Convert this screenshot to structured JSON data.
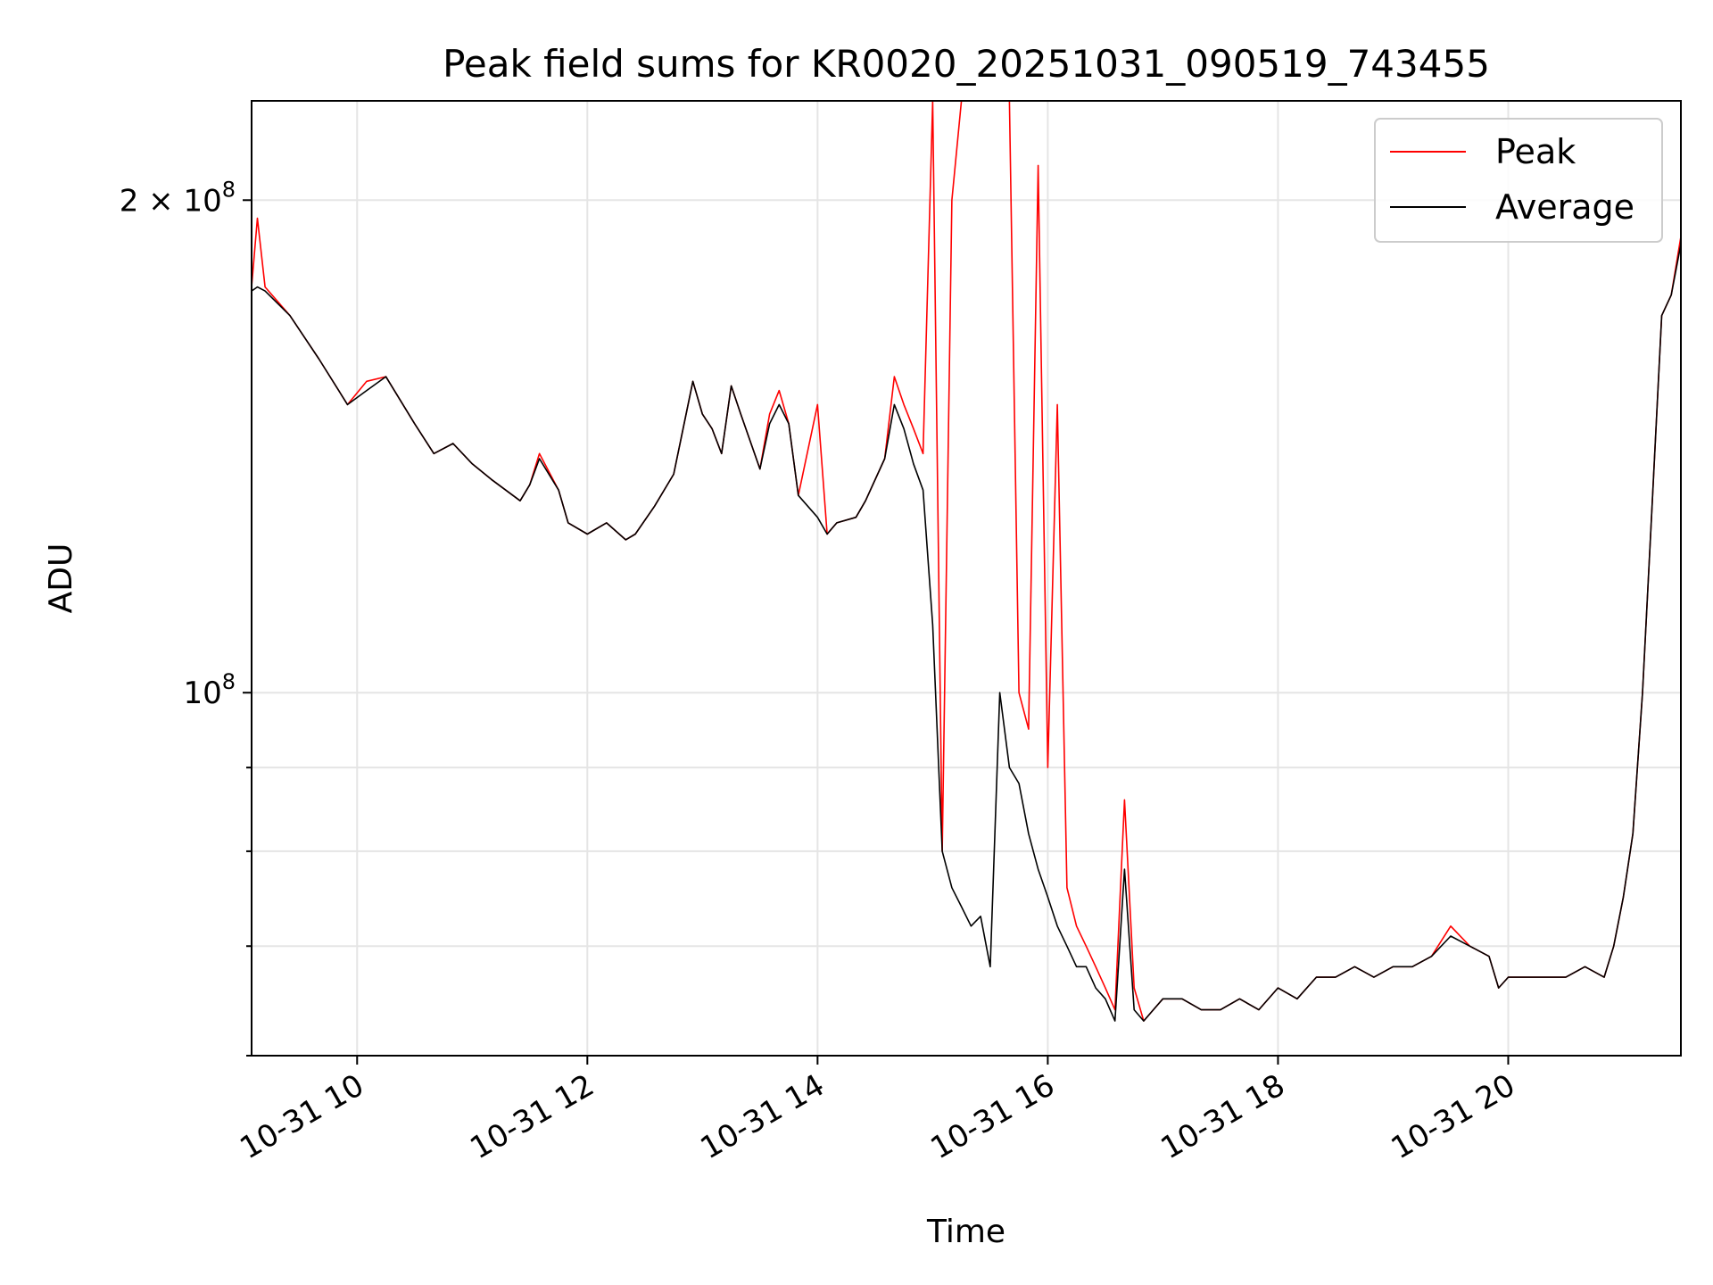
{
  "chart_data": {
    "type": "line",
    "title": "Peak field sums for KR0020_20251031_090519_743455",
    "xlabel": "Time",
    "ylabel": "ADU",
    "yscale": "log",
    "xlim": [
      "10-31 09:05",
      "10-31 21:30"
    ],
    "ylim": [
      60000000,
      230000000
    ],
    "grid": true,
    "legend_position": "upper-right",
    "x_ticks": [
      "10-31 10",
      "10-31 12",
      "10-31 14",
      "10-31 16",
      "10-31 18",
      "10-31 20"
    ],
    "y_ticks": [
      {
        "value": 100000000,
        "label_base": "10",
        "label_exp": "8"
      },
      {
        "value": 200000000,
        "label_base": "2 × 10",
        "label_exp": "8"
      }
    ],
    "y_minor_ticks": [
      60000000,
      70000000,
      80000000,
      90000000
    ],
    "colors": {
      "peak": "#ff0000",
      "average": "#000000"
    },
    "x": [
      "10-31 09:05",
      "10-31 09:08",
      "10-31 09:12",
      "10-31 09:25",
      "10-31 09:40",
      "10-31 09:55",
      "10-31 10:05",
      "10-31 10:15",
      "10-31 10:30",
      "10-31 10:40",
      "10-31 10:50",
      "10-31 11:00",
      "10-31 11:10",
      "10-31 11:25",
      "10-31 11:30",
      "10-31 11:35",
      "10-31 11:45",
      "10-31 11:50",
      "10-31 12:00",
      "10-31 12:10",
      "10-31 12:20",
      "10-31 12:25",
      "10-31 12:35",
      "10-31 12:45",
      "10-31 12:55",
      "10-31 13:00",
      "10-31 13:05",
      "10-31 13:10",
      "10-31 13:15",
      "10-31 13:20",
      "10-31 13:30",
      "10-31 13:35",
      "10-31 13:40",
      "10-31 13:45",
      "10-31 13:50",
      "10-31 14:00",
      "10-31 14:05",
      "10-31 14:10",
      "10-31 14:20",
      "10-31 14:25",
      "10-31 14:35",
      "10-31 14:40",
      "10-31 14:45",
      "10-31 14:50",
      "10-31 14:55",
      "10-31 15:00",
      "10-31 15:05",
      "10-31 15:10",
      "10-31 15:15",
      "10-31 15:20",
      "10-31 15:25",
      "10-31 15:30",
      "10-31 15:35",
      "10-31 15:40",
      "10-31 15:45",
      "10-31 15:50",
      "10-31 15:55",
      "10-31 16:00",
      "10-31 16:05",
      "10-31 16:10",
      "10-31 16:15",
      "10-31 16:20",
      "10-31 16:25",
      "10-31 16:30",
      "10-31 16:35",
      "10-31 16:40",
      "10-31 16:45",
      "10-31 16:50",
      "10-31 16:55",
      "10-31 17:00",
      "10-31 17:10",
      "10-31 17:20",
      "10-31 17:30",
      "10-31 17:40",
      "10-31 17:50",
      "10-31 18:00",
      "10-31 18:10",
      "10-31 18:20",
      "10-31 18:30",
      "10-31 18:40",
      "10-31 18:50",
      "10-31 19:00",
      "10-31 19:10",
      "10-31 19:20",
      "10-31 19:30",
      "10-31 19:40",
      "10-31 19:50",
      "10-31 19:55",
      "10-31 20:00",
      "10-31 20:10",
      "10-31 20:20",
      "10-31 20:30",
      "10-31 20:40",
      "10-31 20:50",
      "10-31 20:55",
      "10-31 21:00",
      "10-31 21:05",
      "10-31 21:10",
      "10-31 21:15",
      "10-31 21:20",
      "10-31 21:25",
      "10-31 21:30"
    ],
    "series": [
      {
        "name": "Peak",
        "values": [
          177000000,
          195000000,
          177000000,
          170000000,
          160000000,
          150000000,
          155000000,
          156000000,
          146000000,
          140000000,
          142000000,
          138000000,
          135000000,
          131000000,
          134000000,
          140000000,
          133000000,
          127000000,
          125000000,
          127000000,
          124000000,
          125000000,
          130000000,
          136000000,
          155000000,
          148000000,
          145000000,
          140000000,
          154000000,
          148000000,
          137000000,
          148000000,
          153000000,
          146000000,
          132000000,
          150000000,
          125000000,
          127000000,
          128000000,
          131000000,
          139000000,
          156000000,
          150000000,
          145000000,
          140000000,
          230000000,
          80000000,
          200000000,
          230000000,
          230000000,
          230000000,
          230000000,
          230000000,
          230000000,
          100000000,
          95000000,
          210000000,
          90000000,
          150000000,
          76000000,
          72000000,
          70000000,
          68000000,
          66000000,
          64000000,
          86000000,
          66000000,
          63000000,
          64000000,
          65000000,
          65000000,
          64000000,
          64000000,
          65000000,
          64000000,
          66000000,
          65000000,
          67000000,
          67000000,
          68000000,
          67000000,
          68000000,
          68000000,
          69000000,
          72000000,
          70000000,
          69000000,
          66000000,
          67000000,
          67000000,
          67000000,
          67000000,
          68000000,
          67000000,
          70000000,
          75000000,
          82000000,
          100000000,
          130000000,
          170000000,
          175000000,
          190000000
        ]
      },
      {
        "name": "Average",
        "values": [
          176000000,
          177000000,
          176000000,
          170000000,
          160000000,
          150000000,
          153000000,
          156000000,
          146000000,
          140000000,
          142000000,
          138000000,
          135000000,
          131000000,
          134000000,
          139000000,
          133000000,
          127000000,
          125000000,
          127000000,
          124000000,
          125000000,
          130000000,
          136000000,
          155000000,
          148000000,
          145000000,
          140000000,
          154000000,
          148000000,
          137000000,
          146000000,
          150000000,
          146000000,
          132000000,
          128000000,
          125000000,
          127000000,
          128000000,
          131000000,
          139000000,
          150000000,
          145000000,
          138000000,
          133000000,
          110000000,
          80000000,
          76000000,
          74000000,
          72000000,
          73000000,
          68000000,
          100000000,
          90000000,
          88000000,
          82000000,
          78000000,
          75000000,
          72000000,
          70000000,
          68000000,
          68000000,
          66000000,
          65000000,
          63000000,
          78000000,
          64000000,
          63000000,
          64000000,
          65000000,
          65000000,
          64000000,
          64000000,
          65000000,
          64000000,
          66000000,
          65000000,
          67000000,
          67000000,
          68000000,
          67000000,
          68000000,
          68000000,
          69000000,
          71000000,
          70000000,
          69000000,
          66000000,
          67000000,
          67000000,
          67000000,
          67000000,
          68000000,
          67000000,
          70000000,
          75000000,
          82000000,
          100000000,
          130000000,
          170000000,
          175000000,
          188000000
        ]
      }
    ]
  }
}
